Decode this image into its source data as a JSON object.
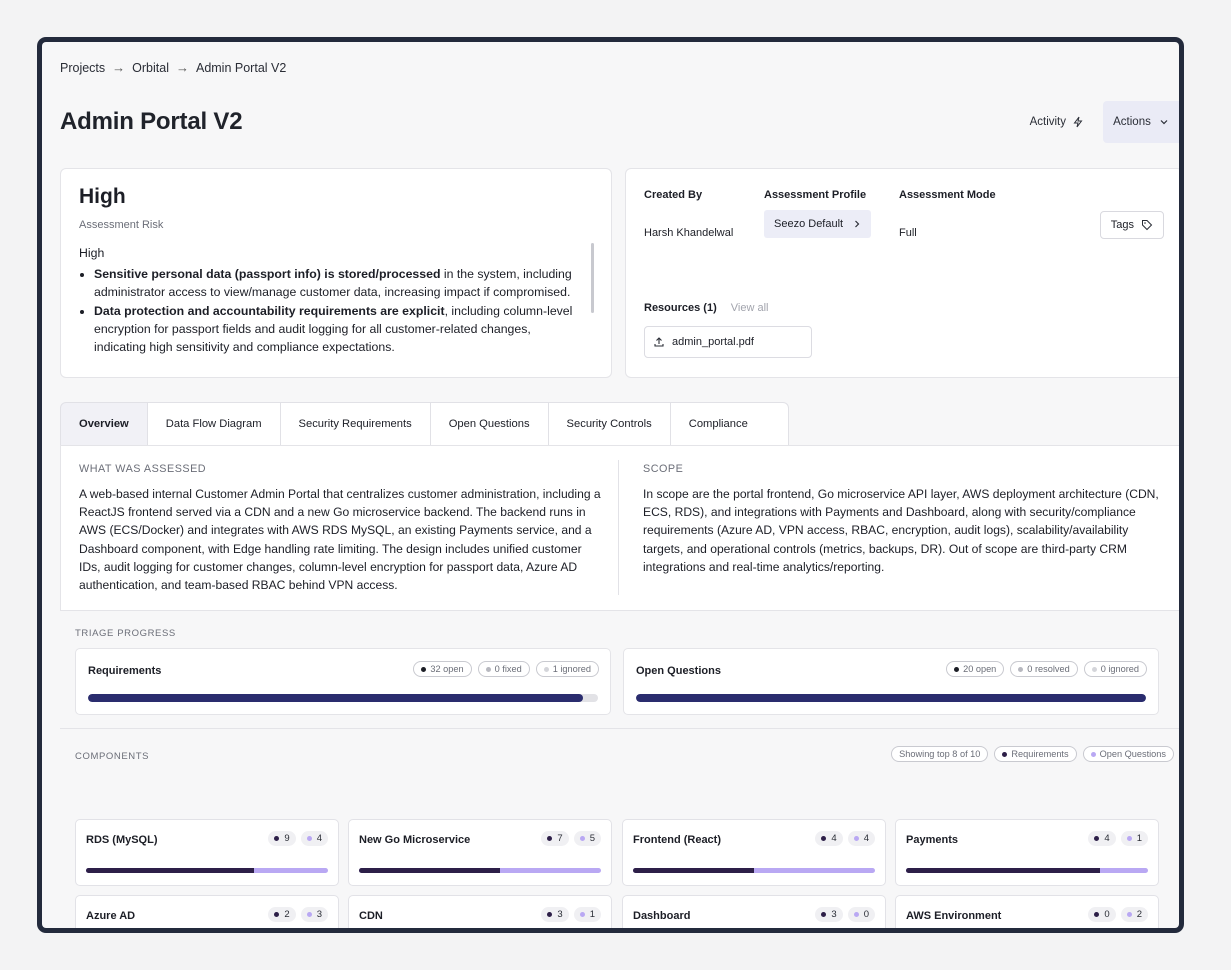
{
  "breadcrumb": [
    "Projects",
    "Orbital",
    "Admin Portal V2"
  ],
  "breadcrumb_sep": "→",
  "page_title": "Admin Portal V2",
  "header": {
    "activity_label": "Activity",
    "actions_label": "Actions"
  },
  "risk": {
    "title": "High",
    "subtitle": "Assessment Risk",
    "level": "High",
    "bullets": [
      {
        "bold": "Sensitive personal data (passport info) is stored/processed",
        "rest": " in the system, including administrator access to view/manage customer data, increasing impact if compromised."
      },
      {
        "bold": "Data protection and accountability requirements are explicit",
        "rest": ", including column-level encryption for passport fields and audit logging for all customer-related changes, indicating high sensitivity and compliance expectations."
      }
    ]
  },
  "meta": {
    "created_by_label": "Created By",
    "created_by_value": "Harsh Khandelwal",
    "profile_label": "Assessment Profile",
    "profile_value": "Seezo Default",
    "mode_label": "Assessment Mode",
    "mode_value": "Full",
    "tags_label": "Tags",
    "resources_label": "Resources (1)",
    "view_all_label": "View all",
    "file_name": "admin_portal.pdf"
  },
  "tabs": [
    "Overview",
    "Data Flow Diagram",
    "Security Requirements",
    "Open Questions",
    "Security Controls",
    "Compliance"
  ],
  "overview": {
    "assessed_heading": "WHAT WAS ASSESSED",
    "assessed_text": "A web-based internal Customer Admin Portal that centralizes customer administration, including a ReactJS frontend served via a CDN and a new Go microservice backend. The backend runs in AWS (ECS/Docker) and integrates with AWS RDS MySQL, an existing Payments service, and a Dashboard component, with Edge handling rate limiting. The design includes unified customer IDs, audit logging for customer changes, column-level encryption for passport data, Azure AD authentication, and team-based RBAC behind VPN access.",
    "scope_heading": "SCOPE",
    "scope_text": "In scope are the portal frontend, Go microservice API layer, AWS deployment architecture (CDN, ECS, RDS), and integrations with Payments and Dashboard, along with security/compliance requirements (Azure AD, VPN access, RBAC, encryption, audit logs), scalability/availability targets, and operational controls (metrics, backups, DR). Out of scope are third-party CRM integrations and real-time analytics/reporting."
  },
  "triage": {
    "label": "TRIAGE PROGRESS",
    "requirements": {
      "name": "Requirements",
      "open": "32 open",
      "fixed": "0 fixed",
      "ignored": "1 ignored",
      "progress": 0.97
    },
    "questions": {
      "name": "Open Questions",
      "open": "20 open",
      "resolved": "0 resolved",
      "ignored": "0 ignored",
      "progress": 1.0
    }
  },
  "components": {
    "label": "COMPONENTS",
    "showing": "Showing top 8 of 10",
    "legend_requirements": "Requirements",
    "legend_questions": "Open Questions",
    "items": [
      {
        "name": "RDS (MySQL)",
        "req": "9",
        "oq": "4"
      },
      {
        "name": "New Go Microservice",
        "req": "7",
        "oq": "5"
      },
      {
        "name": "Frontend (React)",
        "req": "4",
        "oq": "4"
      },
      {
        "name": "Payments",
        "req": "4",
        "oq": "1"
      },
      {
        "name": "Azure AD",
        "req": "2",
        "oq": "3"
      },
      {
        "name": "CDN",
        "req": "3",
        "oq": "1"
      },
      {
        "name": "Dashboard",
        "req": "3",
        "oq": "0"
      },
      {
        "name": "AWS Environment",
        "req": "0",
        "oq": "2"
      }
    ]
  },
  "colors": {
    "req_dot": "#2d1f48",
    "oq_dot": "#b9a8f3",
    "progress_fill": "#2a2c6e",
    "ignored_dot": "#d4d5da",
    "fixed_dot": "#b7b8bf"
  }
}
